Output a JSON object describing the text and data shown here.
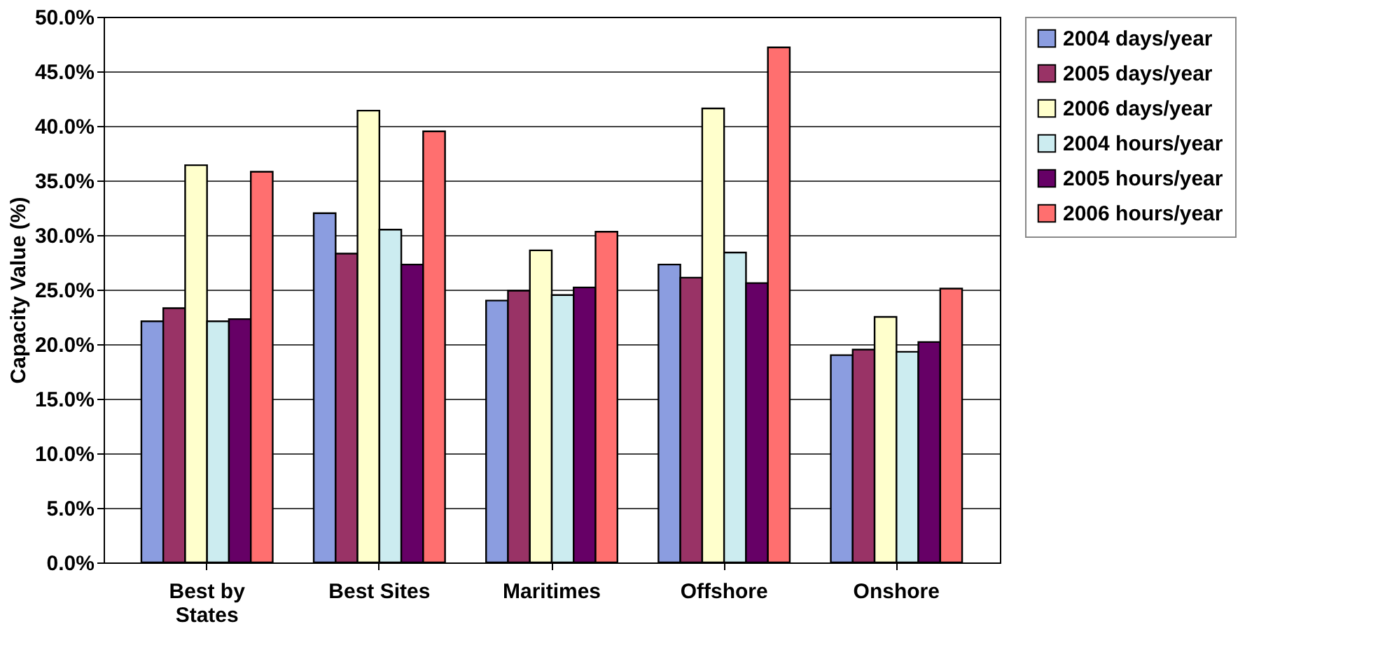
{
  "chart_data": {
    "type": "bar",
    "ylabel": "Capacity Value (%)",
    "categories": [
      "Best by States",
      "Best Sites",
      "Maritimes",
      "Offshore",
      "Onshore"
    ],
    "series": [
      {
        "name": "2004 days/year",
        "color": "#8b9de0",
        "values": [
          22.1,
          32.0,
          24.0,
          27.3,
          19.0
        ]
      },
      {
        "name": "2005 days/year",
        "color": "#993366",
        "values": [
          23.3,
          28.3,
          24.9,
          26.1,
          19.5
        ]
      },
      {
        "name": "2006 days/year",
        "color": "#ffffcc",
        "values": [
          36.4,
          41.4,
          28.6,
          41.6,
          22.5
        ]
      },
      {
        "name": "2004 hours/year",
        "color": "#ccecf0",
        "values": [
          22.1,
          30.5,
          24.5,
          28.4,
          19.3
        ]
      },
      {
        "name": "2005 hours/year",
        "color": "#660066",
        "values": [
          22.3,
          27.3,
          25.2,
          25.6,
          20.2
        ]
      },
      {
        "name": "2006 hours/year",
        "color": "#ff6f6f",
        "values": [
          35.8,
          39.5,
          30.3,
          47.2,
          25.1
        ]
      }
    ],
    "ylim": [
      0,
      50
    ],
    "yticks": [
      {
        "value": 0,
        "label": "0.0%"
      },
      {
        "value": 5,
        "label": "5.0%"
      },
      {
        "value": 10,
        "label": "10.0%"
      },
      {
        "value": 15,
        "label": "15.0%"
      },
      {
        "value": 20,
        "label": "20.0%"
      },
      {
        "value": 25,
        "label": "25.0%"
      },
      {
        "value": 30,
        "label": "30.0%"
      },
      {
        "value": 35,
        "label": "35.0%"
      },
      {
        "value": 40,
        "label": "40.0%"
      },
      {
        "value": 45,
        "label": "45.0%"
      },
      {
        "value": 50,
        "label": "50.0%"
      }
    ],
    "grid": "y",
    "legend": "right"
  }
}
